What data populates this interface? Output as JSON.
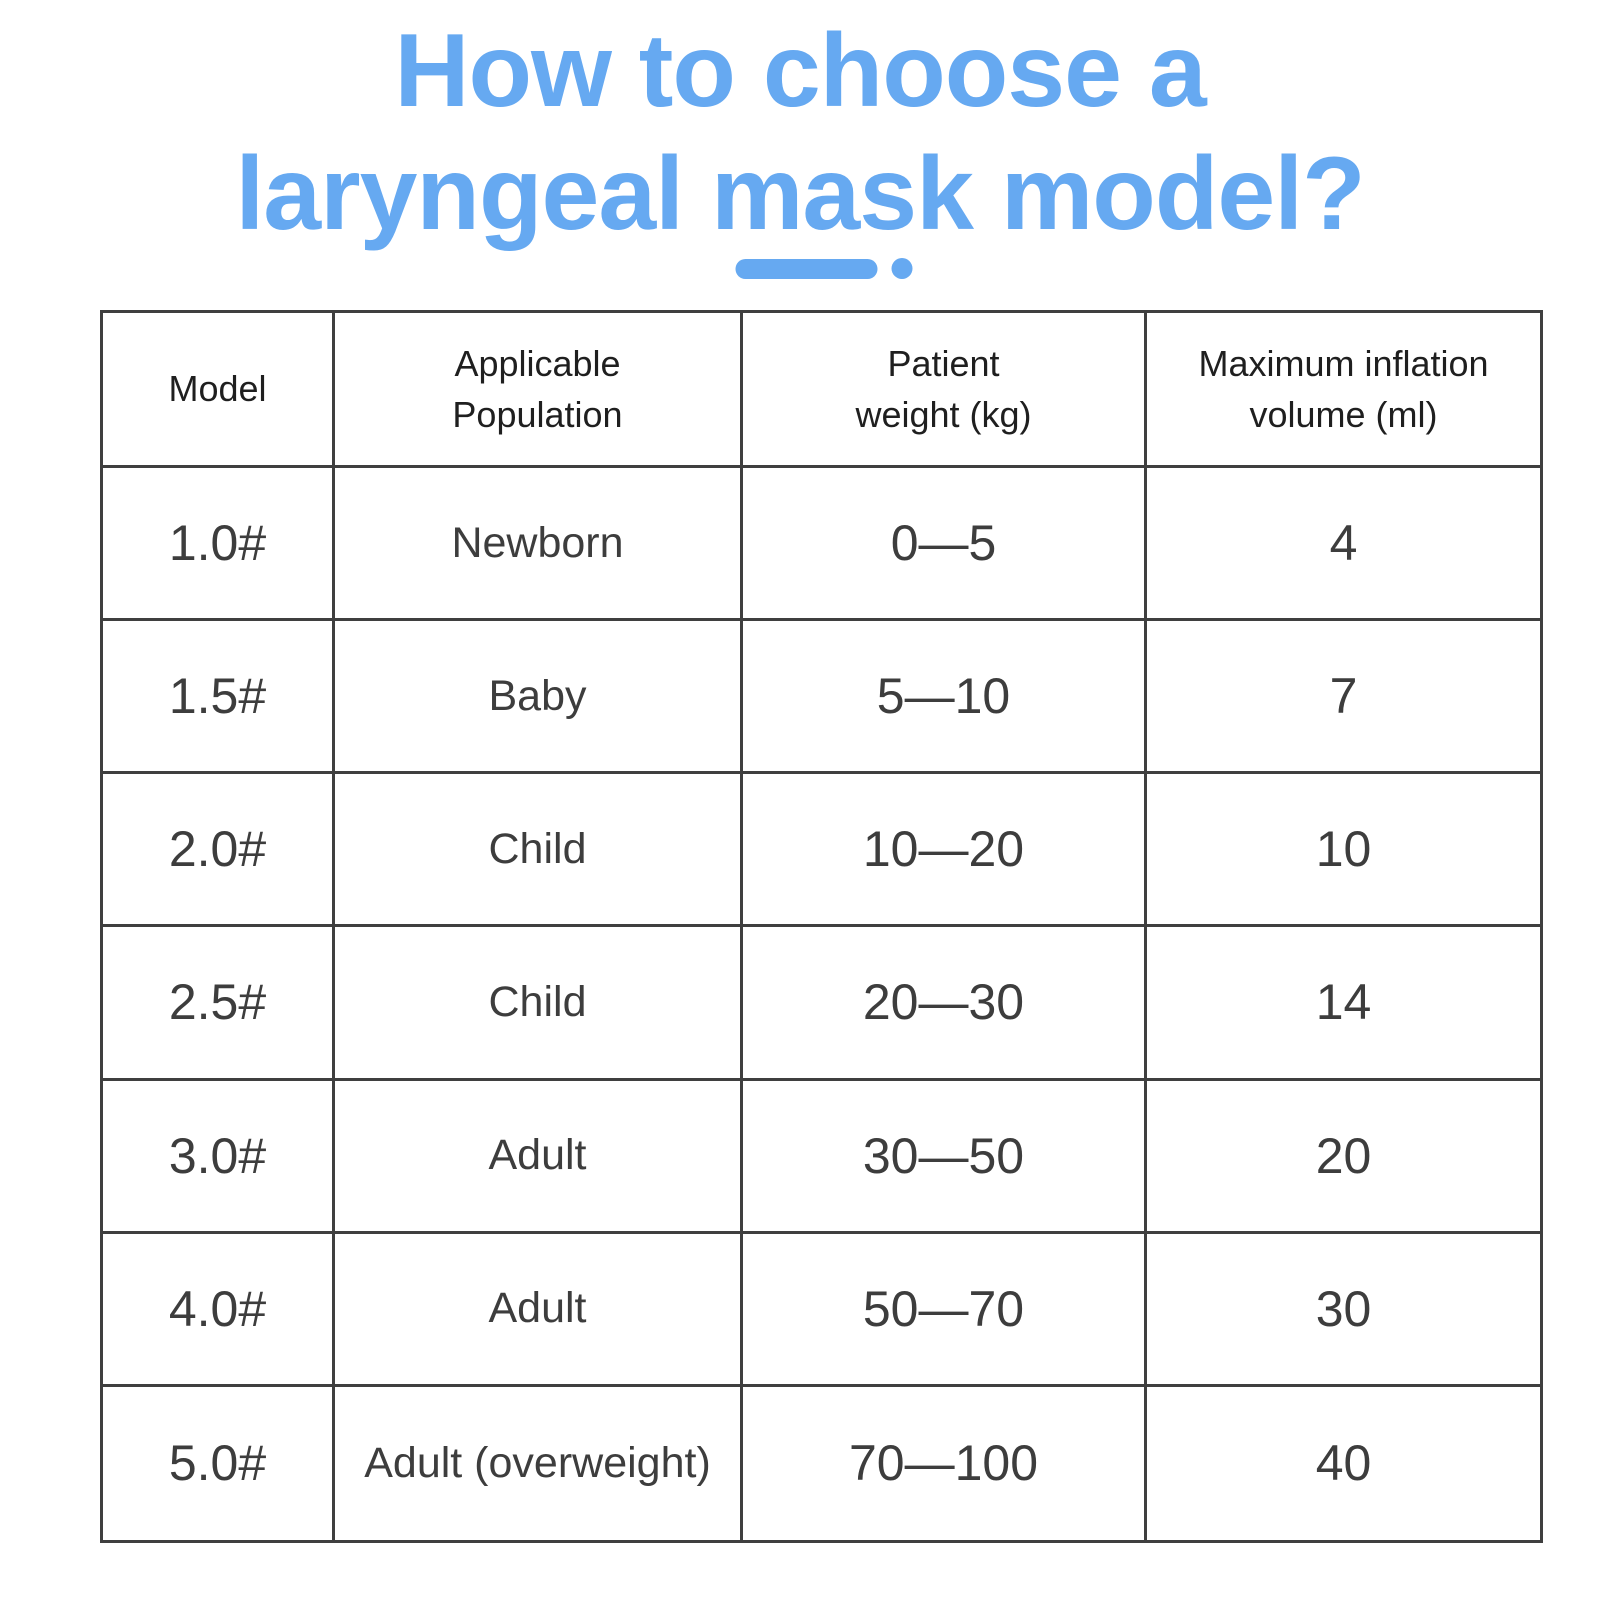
{
  "title": {
    "line1": "How to choose a",
    "line2": "laryngeal mask model?"
  },
  "decoration": {
    "underline_dash_icon": "rounded-bar",
    "underline_dot_icon": "dot"
  },
  "colors": {
    "accent_blue": "#66a9f1",
    "table_border": "#3f3f3f",
    "header_text": "#1f1f1f",
    "cell_text": "#3d3d3d",
    "background": "#ffffff"
  },
  "table": {
    "headers": [
      {
        "lines": [
          "Model",
          ""
        ]
      },
      {
        "lines": [
          "Applicable",
          "Population"
        ]
      },
      {
        "lines": [
          "Patient",
          "weight (kg)"
        ]
      },
      {
        "lines": [
          "Maximum inflation",
          "volume (ml)"
        ]
      }
    ]
  },
  "chart_data": {
    "type": "table",
    "title": "How to choose a laryngeal mask model?",
    "columns": [
      "Model",
      "Applicable Population",
      "Patient weight (kg)",
      "Maximum inflation volume (ml)"
    ],
    "rows": [
      [
        "1.0#",
        "Newborn",
        "0—5",
        "4"
      ],
      [
        "1.5#",
        "Baby",
        "5—10",
        "7"
      ],
      [
        "2.0#",
        "Child",
        "10—20",
        "10"
      ],
      [
        "2.5#",
        "Child",
        "20—30",
        "14"
      ],
      [
        "3.0#",
        "Adult",
        "30—50",
        "20"
      ],
      [
        "4.0#",
        "Adult",
        "50—70",
        "30"
      ],
      [
        "5.0#",
        "Adult (overweight)",
        "70—100",
        "40"
      ]
    ]
  }
}
